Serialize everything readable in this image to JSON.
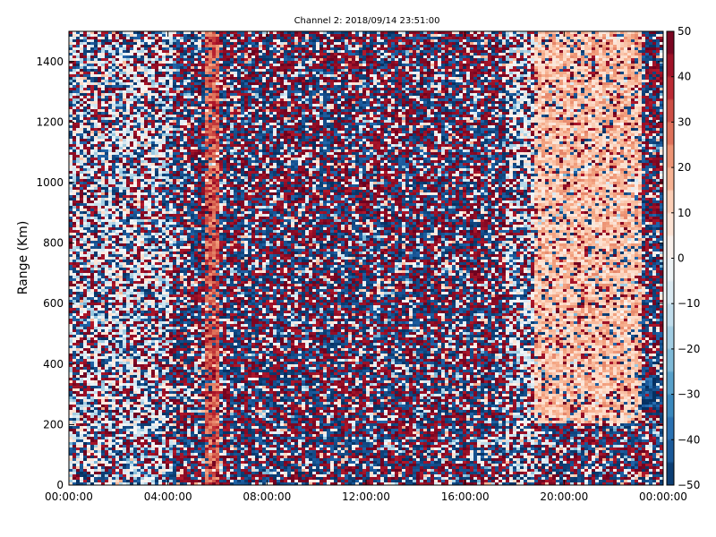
{
  "chart_data": {
    "type": "heatmap",
    "title": "Channel 2: 2018/09/14 23:51:00",
    "xlabel": "",
    "ylabel": "Range (Km)",
    "x_ticks": [
      "00:00:00",
      "04:00:00",
      "08:00:00",
      "12:00:00",
      "16:00:00",
      "20:00:00",
      "00:00:00"
    ],
    "y_ticks": [
      0,
      200,
      400,
      600,
      800,
      1000,
      1200,
      1400
    ],
    "ylim": [
      0,
      1500
    ],
    "x_range_hours": [
      0,
      24
    ],
    "colorbar": {
      "ticks": [
        50,
        40,
        30,
        20,
        10,
        0,
        -10,
        -20,
        -30,
        -40,
        -50
      ],
      "range": [
        -50,
        50
      ],
      "colormap": "RdBu_r"
    },
    "bands": [
      {
        "time_start_hours": 5.5,
        "time_end_hours": 6.1,
        "range_start_km": 0,
        "range_end_km": 1500,
        "value": 30
      },
      {
        "time_start_hours": 18.8,
        "time_end_hours": 23.2,
        "range_start_km": 200,
        "range_end_km": 1500,
        "value": 15
      },
      {
        "time_start_hours": 23.0,
        "time_end_hours": 23.9,
        "range_start_km": 250,
        "range_end_km": 360,
        "value": -45
      }
    ],
    "grid": false
  },
  "colors": {
    "dark_red": "#67001f",
    "red": "#b2182b",
    "light_red": "#f4a582",
    "white": "#f7f7f7",
    "light_blue": "#92c5de",
    "blue": "#2166ac",
    "dark_blue": "#053061"
  }
}
